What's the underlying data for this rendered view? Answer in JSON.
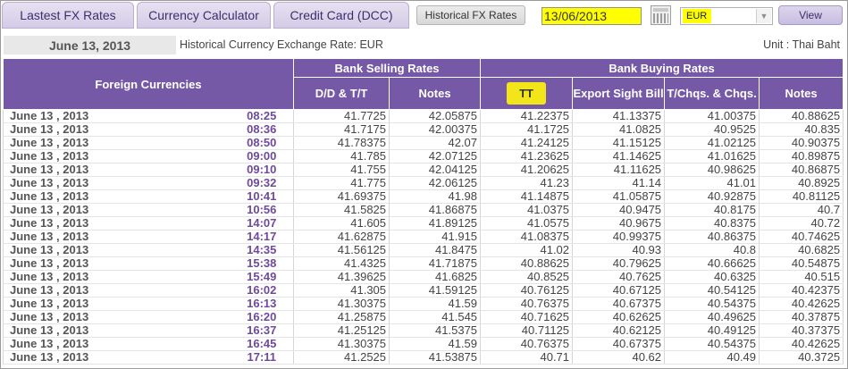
{
  "tabs": [
    {
      "label": "Lastest FX Rates"
    },
    {
      "label": "Currency Calculator"
    },
    {
      "label": "Credit Card (DCC)"
    },
    {
      "label": "Historical FX Rates"
    }
  ],
  "toolbar": {
    "date_value": "13/06/2013",
    "currency_value": "EUR",
    "view_label": "View"
  },
  "info": {
    "date_label": "June 13, 2013",
    "title": "Historical Currency Exchange Rate: EUR",
    "unit": "Unit : Thai Baht"
  },
  "table": {
    "headers": {
      "foreign_currencies": "Foreign Currencies",
      "bank_selling": "Bank Selling Rates",
      "bank_buying": "Bank Buying Rates",
      "dd_tt": "D/D & T/T",
      "notes_sell": "Notes",
      "tt": "TT",
      "export_sight_bill": "Export Sight Bill",
      "tchqs": "T/Chqs. & Chqs.",
      "notes_buy": "Notes"
    },
    "rows": [
      {
        "date": "June 13 , 2013",
        "time": "08:25",
        "dd_tt": "41.7725",
        "notes_sell": "42.05875",
        "tt": "41.22375",
        "export": "41.13375",
        "tchqs": "41.00375",
        "notes_buy": "40.88625"
      },
      {
        "date": "June 13 , 2013",
        "time": "08:36",
        "dd_tt": "41.7175",
        "notes_sell": "42.00375",
        "tt": "41.1725",
        "export": "41.0825",
        "tchqs": "40.9525",
        "notes_buy": "40.835"
      },
      {
        "date": "June 13 , 2013",
        "time": "08:50",
        "dd_tt": "41.78375",
        "notes_sell": "42.07",
        "tt": "41.24125",
        "export": "41.15125",
        "tchqs": "41.02125",
        "notes_buy": "40.90375"
      },
      {
        "date": "June 13 , 2013",
        "time": "09:00",
        "dd_tt": "41.785",
        "notes_sell": "42.07125",
        "tt": "41.23625",
        "export": "41.14625",
        "tchqs": "41.01625",
        "notes_buy": "40.89875"
      },
      {
        "date": "June 13 , 2013",
        "time": "09:10",
        "dd_tt": "41.755",
        "notes_sell": "42.04125",
        "tt": "41.20625",
        "export": "41.11625",
        "tchqs": "40.98625",
        "notes_buy": "40.86875"
      },
      {
        "date": "June 13 , 2013",
        "time": "09:32",
        "dd_tt": "41.775",
        "notes_sell": "42.06125",
        "tt": "41.23",
        "export": "41.14",
        "tchqs": "41.01",
        "notes_buy": "40.8925"
      },
      {
        "date": "June 13 , 2013",
        "time": "10:41",
        "dd_tt": "41.69375",
        "notes_sell": "41.98",
        "tt": "41.14875",
        "export": "41.05875",
        "tchqs": "40.92875",
        "notes_buy": "40.81125"
      },
      {
        "date": "June 13 , 2013",
        "time": "10:56",
        "dd_tt": "41.5825",
        "notes_sell": "41.86875",
        "tt": "41.0375",
        "export": "40.9475",
        "tchqs": "40.8175",
        "notes_buy": "40.7"
      },
      {
        "date": "June 13 , 2013",
        "time": "14:07",
        "dd_tt": "41.605",
        "notes_sell": "41.89125",
        "tt": "41.0575",
        "export": "40.9675",
        "tchqs": "40.8375",
        "notes_buy": "40.72"
      },
      {
        "date": "June 13 , 2013",
        "time": "14:17",
        "dd_tt": "41.62875",
        "notes_sell": "41.915",
        "tt": "41.08375",
        "export": "40.99375",
        "tchqs": "40.86375",
        "notes_buy": "40.74625"
      },
      {
        "date": "June 13 , 2013",
        "time": "14:35",
        "dd_tt": "41.56125",
        "notes_sell": "41.8475",
        "tt": "41.02",
        "export": "40.93",
        "tchqs": "40.8",
        "notes_buy": "40.6825"
      },
      {
        "date": "June 13 , 2013",
        "time": "15:38",
        "dd_tt": "41.4325",
        "notes_sell": "41.71875",
        "tt": "40.88625",
        "export": "40.79625",
        "tchqs": "40.66625",
        "notes_buy": "40.54875"
      },
      {
        "date": "June 13 , 2013",
        "time": "15:49",
        "dd_tt": "41.39625",
        "notes_sell": "41.6825",
        "tt": "40.8525",
        "export": "40.7625",
        "tchqs": "40.6325",
        "notes_buy": "40.515"
      },
      {
        "date": "June 13 , 2013",
        "time": "16:02",
        "dd_tt": "41.305",
        "notes_sell": "41.59125",
        "tt": "40.76125",
        "export": "40.67125",
        "tchqs": "40.54125",
        "notes_buy": "40.42375"
      },
      {
        "date": "June 13 , 2013",
        "time": "16:13",
        "dd_tt": "41.30375",
        "notes_sell": "41.59",
        "tt": "40.76375",
        "export": "40.67375",
        "tchqs": "40.54375",
        "notes_buy": "40.42625"
      },
      {
        "date": "June 13 , 2013",
        "time": "16:20",
        "dd_tt": "41.25875",
        "notes_sell": "41.545",
        "tt": "40.71625",
        "export": "40.62625",
        "tchqs": "40.49625",
        "notes_buy": "40.37875"
      },
      {
        "date": "June 13 , 2013",
        "time": "16:37",
        "dd_tt": "41.25125",
        "notes_sell": "41.5375",
        "tt": "40.71125",
        "export": "40.62125",
        "tchqs": "40.49125",
        "notes_buy": "40.37375"
      },
      {
        "date": "June 13 , 2013",
        "time": "16:45",
        "dd_tt": "41.30375",
        "notes_sell": "41.59",
        "tt": "40.76375",
        "export": "40.67375",
        "tchqs": "40.54375",
        "notes_buy": "40.42625"
      },
      {
        "date": "June 13 , 2013",
        "time": "17:11",
        "dd_tt": "41.2525",
        "notes_sell": "41.53875",
        "tt": "40.71",
        "export": "40.62",
        "tchqs": "40.49",
        "notes_buy": "40.3725"
      }
    ]
  }
}
